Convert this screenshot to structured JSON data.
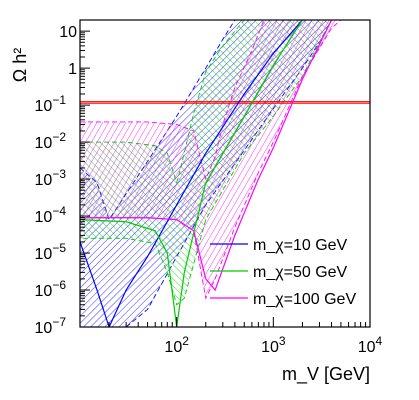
{
  "chart_data": {
    "type": "area",
    "xlabel": "m_V [GeV]",
    "ylabel": "Ω h²",
    "xscale": "log",
    "yscale": "log",
    "xlim": [
      10,
      10000
    ],
    "ylim": [
      1e-07,
      20
    ],
    "x_ticks": [
      {
        "value": 100,
        "base": "10",
        "exp": "2"
      },
      {
        "value": 1000,
        "base": "10",
        "exp": "3"
      },
      {
        "value": 10000,
        "base": "10",
        "exp": "4"
      }
    ],
    "y_ticks": [
      {
        "value": 10,
        "text": "10"
      },
      {
        "value": 1,
        "text": "1"
      },
      {
        "value": 0.1,
        "base": "10",
        "exp": "−1"
      },
      {
        "value": 0.01,
        "base": "10",
        "exp": "−2"
      },
      {
        "value": 0.001,
        "base": "10",
        "exp": "−3"
      },
      {
        "value": 0.0001,
        "base": "10",
        "exp": "−4"
      },
      {
        "value": 1e-05,
        "base": "10",
        "exp": "−5"
      },
      {
        "value": 1e-06,
        "base": "10",
        "exp": "−6"
      },
      {
        "value": 1e-07,
        "base": "10",
        "exp": "−7"
      }
    ],
    "grid": false,
    "legend_position": "bottom-right",
    "reference_band": {
      "low": 0.112,
      "high": 0.124,
      "color": "#ff0000"
    },
    "series": [
      {
        "name": "m_χ=10 GeV",
        "mchi": 10,
        "color": "#0000ff",
        "central": [
          [
            10,
            2e-05
          ],
          [
            15,
            1e-06
          ],
          [
            20,
            1e-07
          ],
          [
            30,
            1e-06
          ],
          [
            50,
            8e-06
          ],
          [
            100,
            0.0002
          ],
          [
            200,
            0.005
          ],
          [
            500,
            0.2
          ],
          [
            1000,
            2.5
          ],
          [
            2000,
            20
          ]
        ],
        "upper": [
          [
            10,
            0.002
          ],
          [
            15,
            0.0008
          ],
          [
            20,
            8e-05
          ],
          [
            30,
            0.0004
          ],
          [
            50,
            0.003
          ],
          [
            100,
            0.05
          ],
          [
            200,
            1
          ],
          [
            300,
            6
          ],
          [
            400,
            20
          ]
        ],
        "lower": [
          [
            10,
            1e-07
          ],
          [
            15,
            1e-07
          ],
          [
            20,
            1e-07
          ],
          [
            30,
            1e-07
          ],
          [
            50,
            3e-07
          ],
          [
            100,
            8e-06
          ],
          [
            200,
            0.0002
          ],
          [
            500,
            0.006
          ],
          [
            1000,
            0.08
          ],
          [
            2000,
            1
          ],
          [
            3000,
            5
          ],
          [
            4000,
            20
          ]
        ]
      },
      {
        "name": "m_χ=50 GeV",
        "mchi": 50,
        "color": "#00cc00",
        "central": [
          [
            10,
            8e-05
          ],
          [
            30,
            7e-05
          ],
          [
            60,
            4e-05
          ],
          [
            80,
            1e-05
          ],
          [
            100,
            1e-07
          ],
          [
            120,
            3e-06
          ],
          [
            200,
            0.0008
          ],
          [
            500,
            0.05
          ],
          [
            1000,
            1.2
          ],
          [
            2000,
            20
          ]
        ],
        "upper": [
          [
            10,
            0.01
          ],
          [
            30,
            0.01
          ],
          [
            60,
            0.008
          ],
          [
            80,
            0.005
          ],
          [
            100,
            0.0008
          ],
          [
            110,
            0.002
          ],
          [
            150,
            0.06
          ],
          [
            200,
            0.8
          ],
          [
            300,
            4
          ],
          [
            500,
            20
          ]
        ],
        "lower": [
          [
            10,
            2.5e-05
          ],
          [
            30,
            2.5e-05
          ],
          [
            60,
            1.8e-05
          ],
          [
            80,
            3e-06
          ],
          [
            100,
            4e-07
          ],
          [
            120,
            6e-07
          ],
          [
            200,
            8e-05
          ],
          [
            500,
            0.005
          ],
          [
            1000,
            0.05
          ],
          [
            2000,
            0.6
          ],
          [
            3000,
            5
          ],
          [
            4000,
            20
          ]
        ]
      },
      {
        "name": "m_χ=100 GeV",
        "mchi": 100,
        "color": "#ff00ff",
        "central": [
          [
            10,
            9e-05
          ],
          [
            50,
            9e-05
          ],
          [
            100,
            8e-05
          ],
          [
            150,
            4e-05
          ],
          [
            200,
            2e-06
          ],
          [
            250,
            1e-06
          ],
          [
            400,
            3e-05
          ],
          [
            700,
            0.001
          ],
          [
            1000,
            0.007
          ],
          [
            2000,
            0.5
          ],
          [
            4000,
            20
          ]
        ],
        "upper": [
          [
            10,
            0.035
          ],
          [
            50,
            0.035
          ],
          [
            100,
            0.03
          ],
          [
            150,
            0.02
          ],
          [
            200,
            0.001
          ],
          [
            250,
            0.004
          ],
          [
            300,
            0.03
          ],
          [
            400,
            0.3
          ],
          [
            600,
            3
          ],
          [
            800,
            20
          ]
        ],
        "lower": [
          [
            10,
            9e-05
          ],
          [
            50,
            9e-05
          ],
          [
            100,
            8e-05
          ],
          [
            150,
            4e-05
          ],
          [
            200,
            6e-07
          ],
          [
            250,
            2e-06
          ],
          [
            400,
            5e-05
          ],
          [
            700,
            0.0015
          ],
          [
            1000,
            0.01
          ],
          [
            2000,
            0.6
          ],
          [
            4000,
            12
          ],
          [
            5000,
            20
          ]
        ]
      }
    ]
  }
}
